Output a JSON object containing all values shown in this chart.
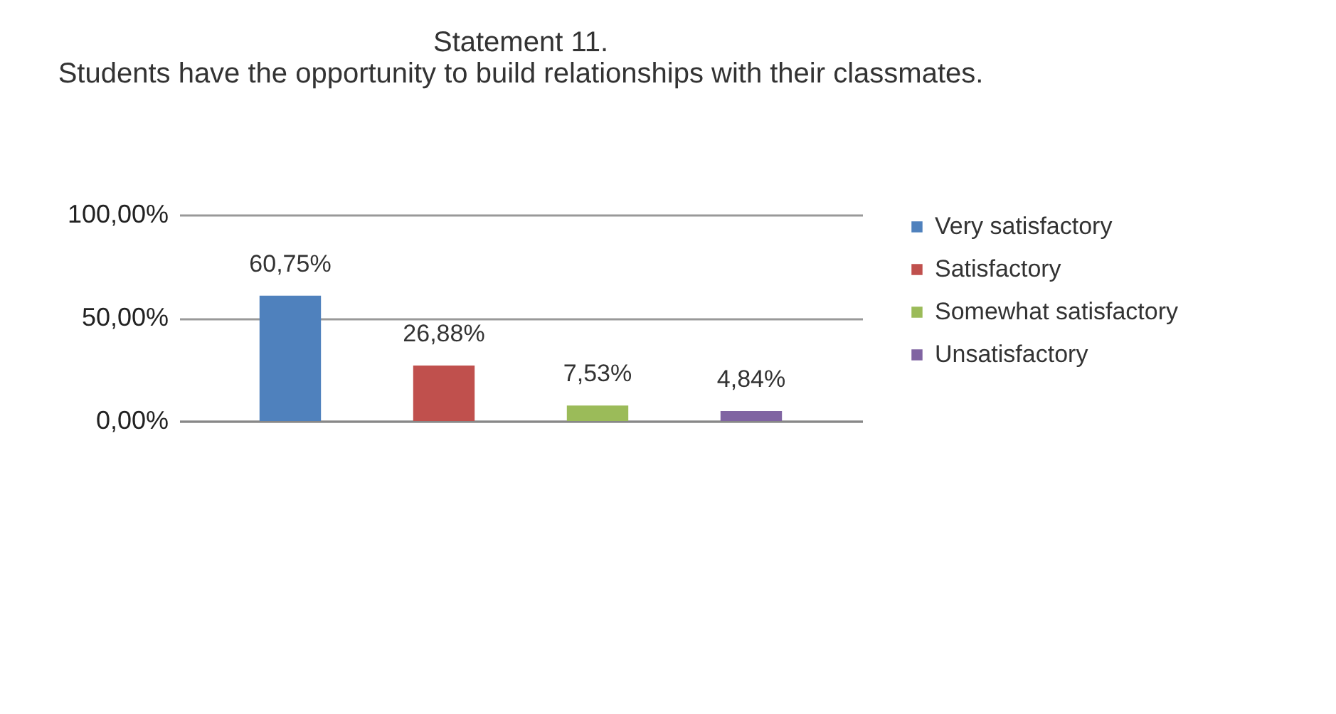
{
  "chart_data": {
    "type": "bar",
    "title": "Statement 11.\nStudents have the opportunity to build relationships with their classmates.",
    "categories": [
      null
    ],
    "series": [
      {
        "name": "Very satisfactory",
        "color": "#4f81bd",
        "values": [
          60.75
        ],
        "value_labels": [
          "60,75%"
        ]
      },
      {
        "name": "Satisfactory",
        "color": "#c0504d",
        "values": [
          26.88
        ],
        "value_labels": [
          "26,88%"
        ]
      },
      {
        "name": "Somewhat satisfactory",
        "color": "#9bbb59",
        "values": [
          7.53
        ],
        "value_labels": [
          "7,53%"
        ]
      },
      {
        "name": "Unsatisfactory",
        "color": "#8064a2",
        "values": [
          4.84
        ],
        "value_labels": [
          "4,84%"
        ]
      }
    ],
    "ylim": [
      0,
      100
    ],
    "yticks": [
      {
        "value": 0,
        "label": "0,00%"
      },
      {
        "value": 50,
        "label": "50,00%"
      },
      {
        "value": 100,
        "label": "100,00%"
      }
    ],
    "grid": "y",
    "legend": "right"
  }
}
